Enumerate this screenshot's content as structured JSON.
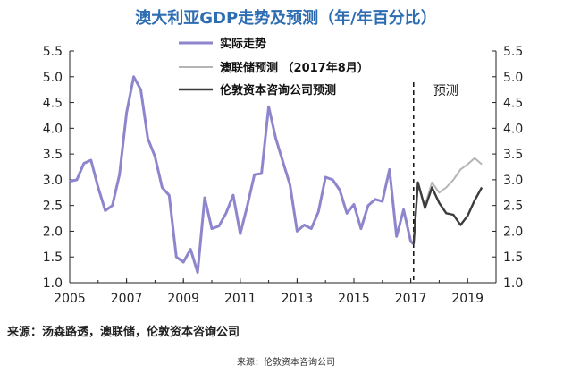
{
  "chart_data": {
    "type": "line",
    "title": "澳大利亚GDP走势及预测（年/年百分比）",
    "ylim": [
      1.0,
      5.5
    ],
    "y_ticks": [
      "1.0",
      "1.5",
      "2.0",
      "2.5",
      "3.0",
      "3.5",
      "4.0",
      "4.5",
      "5.0",
      "5.5"
    ],
    "x_ticks": [
      "2005",
      "2007",
      "2009",
      "2011",
      "2013",
      "2015",
      "2017",
      "2019"
    ],
    "x_range": [
      2005,
      2020
    ],
    "forecast_label": "预测",
    "forecast_divider_x": 2017.1,
    "legend": [
      "实际走势",
      "澳联储预测 （2017年8月）",
      "伦敦资本咨询公司预测"
    ],
    "series": [
      {
        "name": "实际走势",
        "color": "#8e86cc",
        "points": [
          [
            2005.0,
            2.97
          ],
          [
            2005.25,
            3.0
          ],
          [
            2005.5,
            3.32
          ],
          [
            2005.75,
            3.38
          ],
          [
            2006.0,
            2.85
          ],
          [
            2006.25,
            2.4
          ],
          [
            2006.5,
            2.5
          ],
          [
            2006.75,
            3.1
          ],
          [
            2007.0,
            4.3
          ],
          [
            2007.25,
            5.0
          ],
          [
            2007.5,
            4.75
          ],
          [
            2007.75,
            3.8
          ],
          [
            2008.0,
            3.45
          ],
          [
            2008.25,
            2.85
          ],
          [
            2008.5,
            2.7
          ],
          [
            2008.75,
            1.5
          ],
          [
            2009.0,
            1.4
          ],
          [
            2009.25,
            1.65
          ],
          [
            2009.5,
            1.2
          ],
          [
            2009.75,
            2.65
          ],
          [
            2010.0,
            2.05
          ],
          [
            2010.25,
            2.1
          ],
          [
            2010.5,
            2.35
          ],
          [
            2010.75,
            2.7
          ],
          [
            2011.0,
            1.95
          ],
          [
            2011.25,
            2.5
          ],
          [
            2011.5,
            3.1
          ],
          [
            2011.75,
            3.12
          ],
          [
            2012.0,
            4.42
          ],
          [
            2012.25,
            3.8
          ],
          [
            2012.5,
            3.35
          ],
          [
            2012.75,
            2.9
          ],
          [
            2013.0,
            2.0
          ],
          [
            2013.25,
            2.12
          ],
          [
            2013.5,
            2.05
          ],
          [
            2013.75,
            2.38
          ],
          [
            2014.0,
            3.05
          ],
          [
            2014.25,
            3.0
          ],
          [
            2014.5,
            2.8
          ],
          [
            2014.75,
            2.35
          ],
          [
            2015.0,
            2.52
          ],
          [
            2015.25,
            2.05
          ],
          [
            2015.5,
            2.5
          ],
          [
            2015.75,
            2.62
          ],
          [
            2016.0,
            2.58
          ],
          [
            2016.25,
            3.2
          ],
          [
            2016.5,
            1.9
          ],
          [
            2016.75,
            2.42
          ],
          [
            2017.0,
            1.8
          ],
          [
            2017.1,
            1.75
          ]
        ]
      },
      {
        "name": "澳联储预测 （2017年8月）",
        "color": "#b5b5b5",
        "points": [
          [
            2017.1,
            1.75
          ],
          [
            2017.25,
            2.9
          ],
          [
            2017.5,
            2.5
          ],
          [
            2017.75,
            2.95
          ],
          [
            2018.0,
            2.75
          ],
          [
            2018.25,
            2.85
          ],
          [
            2018.5,
            3.0
          ],
          [
            2018.75,
            3.2
          ],
          [
            2019.0,
            3.3
          ],
          [
            2019.25,
            3.42
          ],
          [
            2019.5,
            3.3
          ]
        ]
      },
      {
        "name": "伦敦资本咨询公司预测",
        "color": "#3c3c3c",
        "points": [
          [
            2017.1,
            1.75
          ],
          [
            2017.25,
            2.95
          ],
          [
            2017.5,
            2.45
          ],
          [
            2017.75,
            2.85
          ],
          [
            2018.0,
            2.55
          ],
          [
            2018.25,
            2.35
          ],
          [
            2018.5,
            2.32
          ],
          [
            2018.75,
            2.12
          ],
          [
            2019.0,
            2.3
          ],
          [
            2019.25,
            2.6
          ],
          [
            2019.5,
            2.85
          ]
        ]
      }
    ]
  },
  "source_main": "来源：汤森路透，澳联储，伦敦资本咨询公司",
  "source_small": "来源：伦敦资本咨询公司"
}
